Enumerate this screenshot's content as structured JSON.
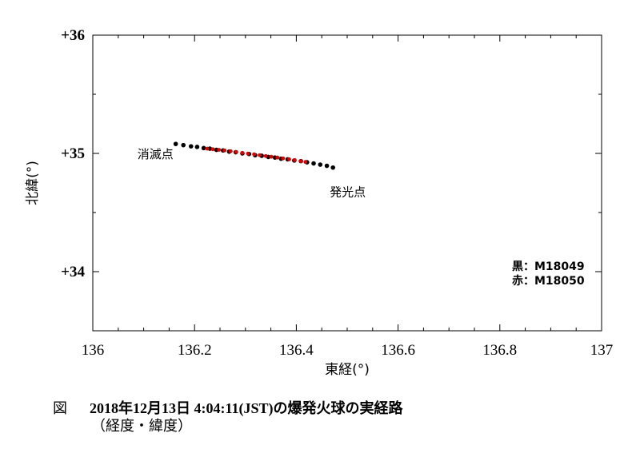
{
  "chart_data": {
    "type": "scatter",
    "xlabel": "東経(°)",
    "ylabel": "北緯(°)",
    "xlim": [
      136.0,
      137.0
    ],
    "ylim": [
      33.5,
      36.0
    ],
    "x_ticks": [
      136.0,
      136.2,
      136.4,
      136.6,
      136.8,
      137.0
    ],
    "x_tick_labels": [
      "136",
      "136.2",
      "136.4",
      "136.6",
      "136.8",
      "137"
    ],
    "y_ticks": [
      34,
      35,
      36
    ],
    "y_tick_labels": [
      "+34",
      "+35",
      "+36"
    ],
    "grid": false,
    "annotations": [
      {
        "text": "消滅点",
        "x": 136.123,
        "y": 34.96
      },
      {
        "text": "発光点",
        "x": 136.501,
        "y": 34.64
      }
    ],
    "legend": [
      "黒：M18049",
      "赤：M18050"
    ],
    "legend_position": "bottom-right",
    "series": [
      {
        "name": "M18049",
        "color": "#000000",
        "points": [
          [
            136.163,
            35.08
          ],
          [
            136.178,
            35.07
          ],
          [
            136.193,
            35.06
          ],
          [
            136.205,
            35.055
          ],
          [
            136.218,
            35.045
          ],
          [
            136.23,
            35.04
          ],
          [
            136.243,
            35.03
          ],
          [
            136.256,
            35.025
          ],
          [
            136.268,
            35.015
          ],
          [
            136.281,
            35.01
          ],
          [
            136.294,
            35.0
          ],
          [
            136.307,
            34.995
          ],
          [
            136.319,
            34.985
          ],
          [
            136.332,
            34.98
          ],
          [
            136.345,
            34.97
          ],
          [
            136.358,
            34.965
          ],
          [
            136.37,
            34.955
          ],
          [
            136.383,
            34.95
          ],
          [
            136.396,
            34.94
          ],
          [
            136.409,
            34.935
          ],
          [
            136.421,
            34.925
          ],
          [
            136.434,
            34.915
          ],
          [
            136.447,
            34.905
          ],
          [
            136.46,
            34.895
          ],
          [
            136.472,
            34.88
          ]
        ]
      },
      {
        "name": "M18050",
        "color": "#e00000",
        "points": [
          [
            136.225,
            35.04
          ],
          [
            136.236,
            35.035
          ],
          [
            136.248,
            35.03
          ],
          [
            136.259,
            35.025
          ],
          [
            136.271,
            35.018
          ],
          [
            136.282,
            35.012
          ],
          [
            136.294,
            35.005
          ],
          [
            136.305,
            34.998
          ],
          [
            136.317,
            34.992
          ],
          [
            136.328,
            34.985
          ],
          [
            136.34,
            34.978
          ],
          [
            136.351,
            34.972
          ],
          [
            136.363,
            34.965
          ],
          [
            136.374,
            34.958
          ],
          [
            136.386,
            34.95
          ],
          [
            136.397,
            34.943
          ],
          [
            136.409,
            34.935
          ],
          [
            136.418,
            34.928
          ]
        ]
      }
    ]
  },
  "caption": {
    "lead": "図",
    "title": "2018年12月13日 4:04:11(JST)の爆発火球の実経路",
    "subtitle": "（経度・緯度）"
  }
}
